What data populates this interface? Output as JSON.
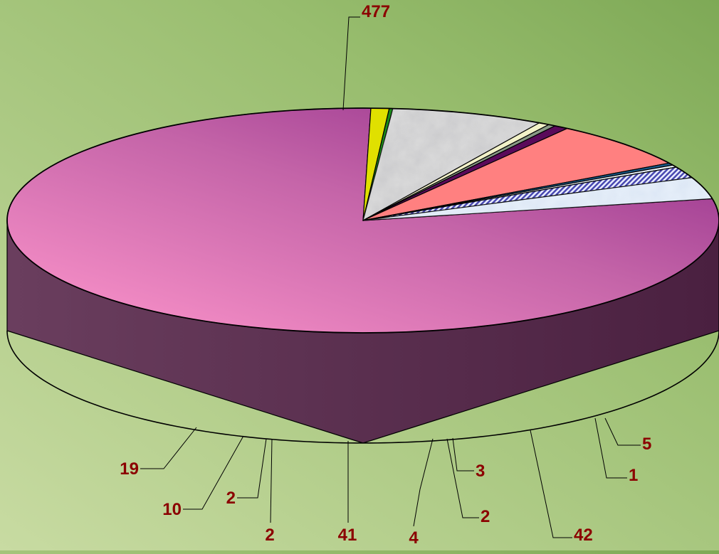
{
  "chart_data": {
    "type": "pie",
    "style": "3d",
    "values": [
      477,
      5,
      1,
      42,
      3,
      2,
      4,
      41,
      2,
      2,
      10,
      19
    ],
    "labels": [
      "477",
      "5",
      "1",
      "42",
      "3",
      "2",
      "4",
      "41",
      "2",
      "2",
      "10",
      "19"
    ],
    "colors": [
      "#b04c9e",
      "#e0e000",
      "#1a8a1a",
      "#dcdcdc",
      "#f2f2c8",
      "#8a9a86",
      "#5a0a5a",
      "#ff8080",
      "#1a5a8a",
      "#e8f0f8",
      "#5050c0",
      "#e8f0fa"
    ],
    "label_color": "#8b0000",
    "title": "",
    "legend": "none"
  }
}
